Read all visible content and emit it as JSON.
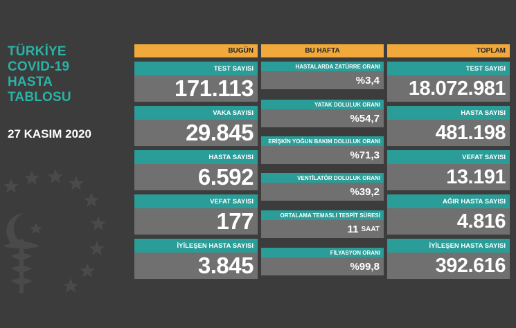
{
  "header": {
    "title_lines": [
      "TÜRKİYE",
      "COVID-19",
      "HASTA",
      "TABLOSU"
    ],
    "date": "27 KASIM 2020"
  },
  "today": {
    "header": "BUGÜN",
    "cards": [
      {
        "label": "TEST SAYISI",
        "value": "171.113"
      },
      {
        "label": "VAKA SAYISI",
        "value": "29.845"
      },
      {
        "label": "HASTA SAYISI",
        "value": "6.592"
      },
      {
        "label": "VEFAT SAYISI",
        "value": "177"
      },
      {
        "label": "İYİLEŞEN HASTA SAYISI",
        "value": "3.845"
      }
    ]
  },
  "week": {
    "header": "BU HAFTA",
    "cards": [
      {
        "label": "HASTALARDA ZATÜRRE ORANI",
        "value": "%3,4",
        "suffix": ""
      },
      {
        "label": "YATAK DOLULUK ORANI",
        "value": "%54,7",
        "suffix": ""
      },
      {
        "label": "ERİŞKİN YOĞUN BAKIM DOLULUK ORANI",
        "value": "%71,3",
        "suffix": ""
      },
      {
        "label": "VENTİLATÖR DOLULUK ORANI",
        "value": "%39,2",
        "suffix": ""
      },
      {
        "label": "ORTALAMA TEMASLI TESPİT SÜRESİ",
        "value": "11",
        "suffix": "SAAT"
      },
      {
        "label": "FİLYASYON ORANI",
        "value": "%99,8",
        "suffix": ""
      }
    ]
  },
  "total": {
    "header": "TOPLAM",
    "cards": [
      {
        "label": "TEST SAYISI",
        "value": "18.072.981"
      },
      {
        "label": "HASTA SAYISI",
        "value": "481.198"
      },
      {
        "label": "VEFAT SAYISI",
        "value": "13.191"
      },
      {
        "label": "AĞIR HASTA SAYISI",
        "value": "4.816"
      },
      {
        "label": "İYİLEŞEN HASTA SAYISI",
        "value": "392.616"
      }
    ]
  },
  "colors": {
    "background": "#3c3c3c",
    "title": "#2ab3a6",
    "header_bar": "#f2a93b",
    "label_bar": "#2a9d98",
    "value_box": "#707070"
  },
  "icons": {
    "emblem": "ministry-of-health-emblem"
  }
}
